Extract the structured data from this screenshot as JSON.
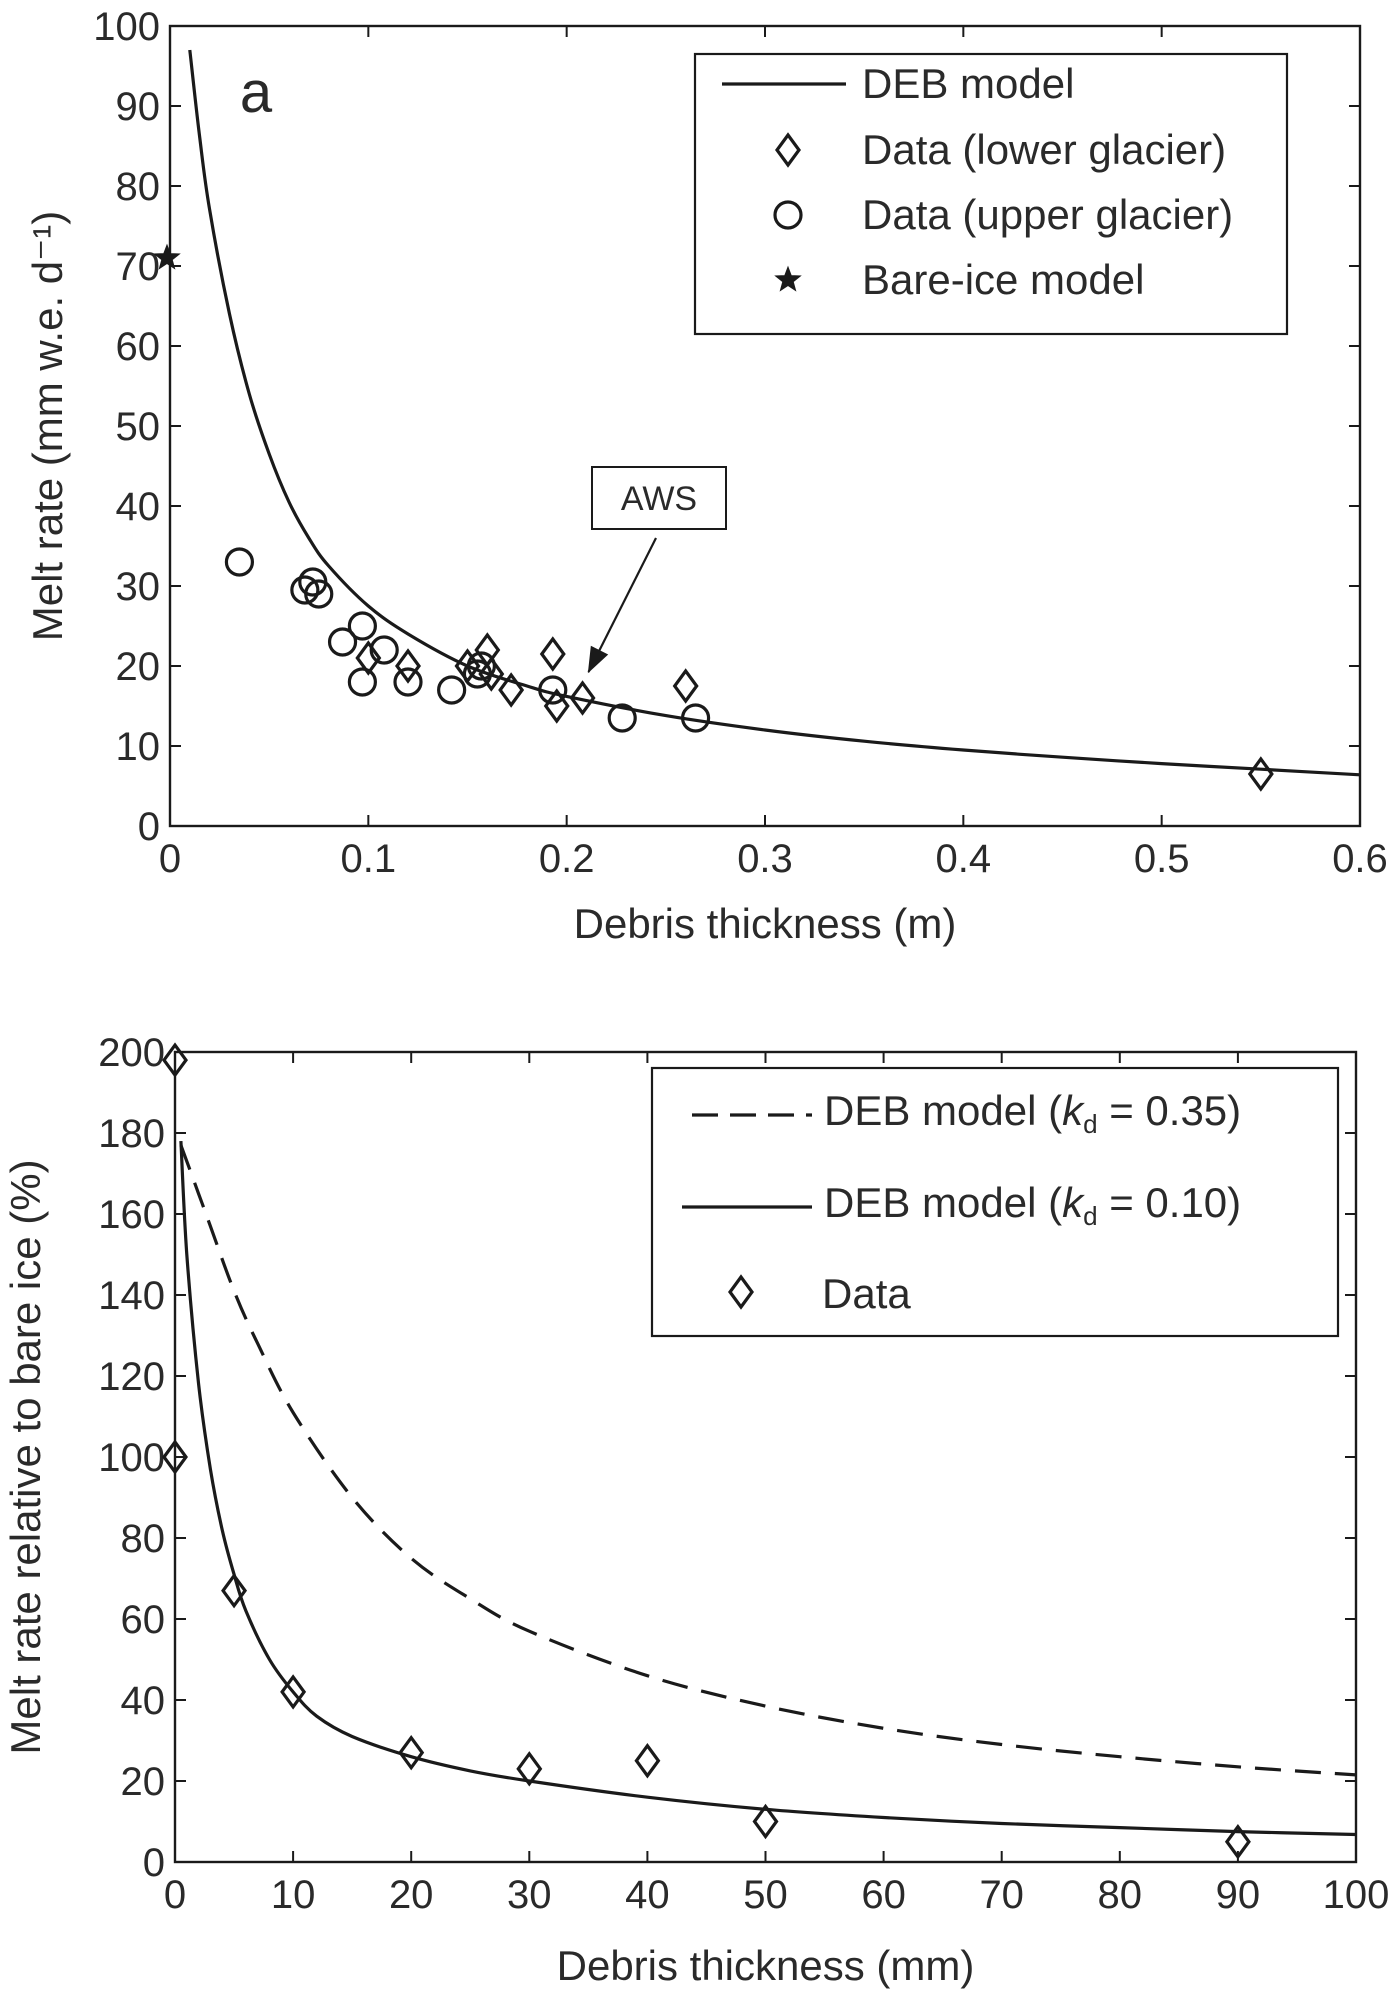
{
  "chart_data": [
    {
      "type": "line",
      "panel_label": "a",
      "xlabel": "Debris thickness (m)",
      "ylabel": "Melt rate (mm w.e. d⁻¹)",
      "xlim": [
        0,
        0.6
      ],
      "ylim": [
        0,
        100
      ],
      "xticks": [
        "0",
        "0.1",
        "0.2",
        "0.3",
        "0.4",
        "0.5",
        "0.6"
      ],
      "yticks": [
        "0",
        "10",
        "20",
        "30",
        "40",
        "50",
        "60",
        "70",
        "80",
        "90",
        "100"
      ],
      "grid": false,
      "legend_position": "top-right",
      "legend": [
        "DEB model",
        "Data (lower glacier)",
        "Data (upper glacier)",
        "Bare-ice model"
      ],
      "annotation": "AWS",
      "annotation_target": [
        0.21,
        18.5
      ],
      "series": [
        {
          "name": "DEB model",
          "style": "solid",
          "x": [
            0.01,
            0.015,
            0.02,
            0.03,
            0.04,
            0.05,
            0.06,
            0.07,
            0.08,
            0.1,
            0.12,
            0.15,
            0.18,
            0.2,
            0.25,
            0.3,
            0.35,
            0.4,
            0.45,
            0.5,
            0.55,
            0.6
          ],
          "y": [
            97,
            86,
            77,
            64,
            54,
            46.5,
            40.5,
            36,
            32.5,
            27.5,
            24,
            20,
            17.5,
            16.2,
            13.8,
            12,
            10.6,
            9.5,
            8.6,
            7.8,
            7.1,
            6.4
          ]
        },
        {
          "name": "Data (lower glacier)",
          "marker": "diamond",
          "x": [
            0.1,
            0.12,
            0.15,
            0.16,
            0.162,
            0.172,
            0.193,
            0.195,
            0.208,
            0.26,
            0.55
          ],
          "y": [
            21,
            20,
            20,
            22,
            19,
            17,
            21.5,
            15,
            16,
            17.5,
            6.5
          ]
        },
        {
          "name": "Data (upper glacier)",
          "marker": "circle",
          "x": [
            0.035,
            0.068,
            0.072,
            0.075,
            0.087,
            0.097,
            0.097,
            0.108,
            0.12,
            0.142,
            0.155,
            0.157,
            0.193,
            0.228,
            0.265
          ],
          "y": [
            33,
            29.5,
            30.5,
            29,
            23,
            25,
            18,
            22,
            18,
            17,
            19,
            20,
            17,
            13.5,
            13.5
          ]
        },
        {
          "name": "Bare-ice model",
          "marker": "star",
          "x": [
            0
          ],
          "y": [
            71
          ]
        }
      ]
    },
    {
      "type": "line",
      "xlabel": "Debris thickness (mm)",
      "ylabel": "Melt rate relative to bare ice (%)",
      "xlim": [
        0,
        100
      ],
      "ylim": [
        0,
        200
      ],
      "xticks": [
        "0",
        "10",
        "20",
        "30",
        "40",
        "50",
        "60",
        "70",
        "80",
        "90",
        "100"
      ],
      "yticks": [
        "0",
        "20",
        "40",
        "60",
        "80",
        "100",
        "120",
        "140",
        "160",
        "180",
        "200"
      ],
      "grid": false,
      "legend_position": "top-right",
      "legend": [
        {
          "prefix": "DEB model (",
          "italic": "k",
          "sub": "d",
          "suffix": " = 0.35)"
        },
        {
          "prefix": "DEB model (",
          "italic": "k",
          "sub": "d",
          "suffix": " = 0.10)"
        },
        {
          "prefix": "Data",
          "italic": "",
          "sub": "",
          "suffix": ""
        }
      ],
      "series": [
        {
          "name": "DEB model (kd = 0.35)",
          "style": "dashed",
          "x": [
            0.5,
            1,
            2,
            3,
            5,
            7,
            10,
            15,
            20,
            25,
            30,
            40,
            50,
            60,
            70,
            80,
            90,
            100
          ],
          "y": [
            177,
            173,
            165,
            157,
            141,
            128,
            111,
            90,
            75,
            65,
            57,
            46,
            38.5,
            33,
            29,
            26,
            23.5,
            21.5
          ]
        },
        {
          "name": "DEB model (kd = 0.10)",
          "style": "solid",
          "x": [
            0.5,
            1,
            2,
            3,
            4,
            5,
            6,
            8,
            10,
            12,
            15,
            20,
            25,
            30,
            40,
            50,
            60,
            70,
            80,
            90,
            100
          ],
          "y": [
            178,
            150,
            118,
            97,
            82,
            71,
            62,
            50,
            42,
            36,
            31,
            26,
            22.5,
            20,
            16,
            13,
            11,
            9.5,
            8.5,
            7.5,
            6.8
          ]
        },
        {
          "name": "Data",
          "marker": "diamond",
          "x": [
            0,
            0,
            5,
            10,
            20,
            30,
            40,
            50,
            90
          ],
          "y": [
            198,
            100,
            67,
            42,
            27,
            23,
            25,
            10,
            5
          ]
        }
      ]
    }
  ]
}
